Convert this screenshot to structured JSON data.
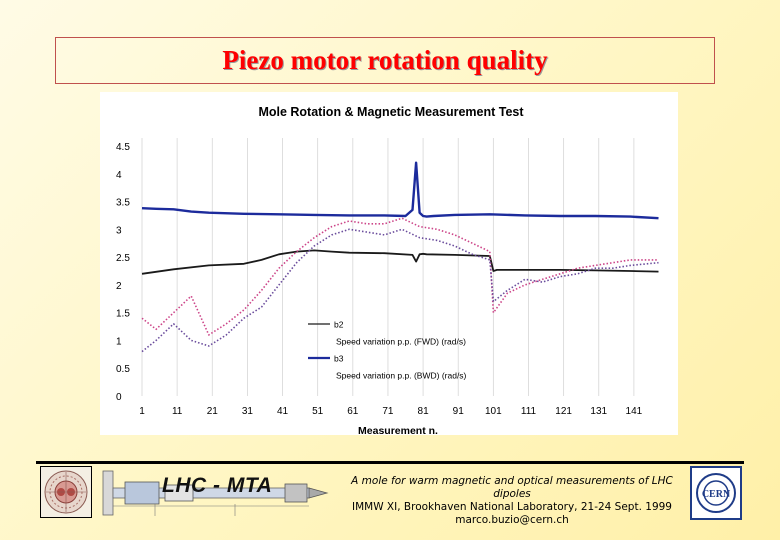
{
  "slide": {
    "title": "Piezo motor rotation quality",
    "footer_line1": "A mole for warm magnetic and optical measurements of LHC dipoles",
    "footer_line2": "IMMW XI, Brookhaven National Laboratory, 21-24 Sept. 1999",
    "footer_line3": "marco.buzio@cern.ch",
    "banner_text": "LHC - MTA"
  },
  "chart_data": {
    "type": "line",
    "title": "Mole Rotation & Magnetic Measurement Test",
    "xlabel": "Measurement n.",
    "ylabel": "",
    "xlim": [
      1,
      149
    ],
    "ylim": [
      0,
      4.5
    ],
    "y_ticks": [
      "0",
      "0.5",
      "1",
      "1.5",
      "2",
      "2.5",
      "3",
      "3.5",
      "4",
      "4.5"
    ],
    "x_ticks": [
      "1",
      "11",
      "21",
      "31",
      "41",
      "51",
      "61",
      "71",
      "81",
      "91",
      "101",
      "111",
      "121",
      "131",
      "141"
    ],
    "grid": "vertical",
    "legend_position": "lower-center",
    "series": [
      {
        "name": "b2",
        "color": "#1a1a1a",
        "style": "solid",
        "x": [
          1,
          10,
          20,
          30,
          35,
          40,
          45,
          50,
          55,
          60,
          70,
          78,
          79,
          80,
          81,
          82,
          90,
          100,
          101,
          102,
          110,
          120,
          130,
          140,
          148
        ],
        "y": [
          2.2,
          2.28,
          2.35,
          2.38,
          2.45,
          2.55,
          2.6,
          2.62,
          2.6,
          2.58,
          2.57,
          2.54,
          2.42,
          2.55,
          2.56,
          2.55,
          2.54,
          2.52,
          2.25,
          2.27,
          2.27,
          2.27,
          2.26,
          2.25,
          2.24
        ]
      },
      {
        "name": "Speed variation p.p. (FWD) (rad/s)",
        "color": "#cc4488",
        "style": "dotted",
        "x": [
          1,
          5,
          10,
          15,
          20,
          25,
          30,
          35,
          40,
          45,
          50,
          55,
          60,
          65,
          70,
          75,
          80,
          85,
          90,
          95,
          100,
          101,
          105,
          110,
          115,
          120,
          125,
          130,
          135,
          140,
          148
        ],
        "y": [
          1.4,
          1.2,
          1.5,
          1.8,
          1.1,
          1.3,
          1.55,
          1.9,
          2.3,
          2.6,
          2.85,
          3.05,
          3.15,
          3.1,
          3.1,
          3.2,
          3.05,
          3.0,
          2.9,
          2.75,
          2.6,
          1.5,
          1.85,
          2.0,
          2.1,
          2.2,
          2.3,
          2.35,
          2.4,
          2.45,
          2.45
        ]
      },
      {
        "name": "b3",
        "color": "#1c2b9c",
        "style": "solid",
        "x": [
          1,
          5,
          10,
          15,
          20,
          30,
          40,
          50,
          60,
          70,
          76,
          78,
          79,
          80,
          81,
          82,
          84,
          90,
          100,
          110,
          120,
          130,
          140,
          148
        ],
        "y": [
          3.38,
          3.37,
          3.36,
          3.32,
          3.3,
          3.28,
          3.27,
          3.26,
          3.25,
          3.25,
          3.24,
          3.35,
          4.2,
          3.3,
          3.24,
          3.23,
          3.24,
          3.26,
          3.27,
          3.25,
          3.24,
          3.24,
          3.23,
          3.2
        ]
      },
      {
        "name": "Speed variation p.p. (BWD) (rad/s)",
        "color": "#6a4c9c",
        "style": "dotted",
        "x": [
          1,
          5,
          10,
          15,
          20,
          25,
          30,
          35,
          40,
          45,
          50,
          55,
          60,
          65,
          70,
          75,
          80,
          85,
          90,
          95,
          100,
          101,
          105,
          110,
          115,
          120,
          125,
          130,
          135,
          140,
          148
        ],
        "y": [
          0.8,
          1.0,
          1.3,
          1.0,
          0.9,
          1.1,
          1.4,
          1.6,
          2.0,
          2.4,
          2.7,
          2.9,
          3.0,
          2.95,
          2.9,
          3.0,
          2.85,
          2.8,
          2.7,
          2.55,
          2.45,
          1.7,
          1.9,
          2.1,
          2.05,
          2.15,
          2.2,
          2.3,
          2.3,
          2.35,
          2.4
        ]
      }
    ]
  }
}
